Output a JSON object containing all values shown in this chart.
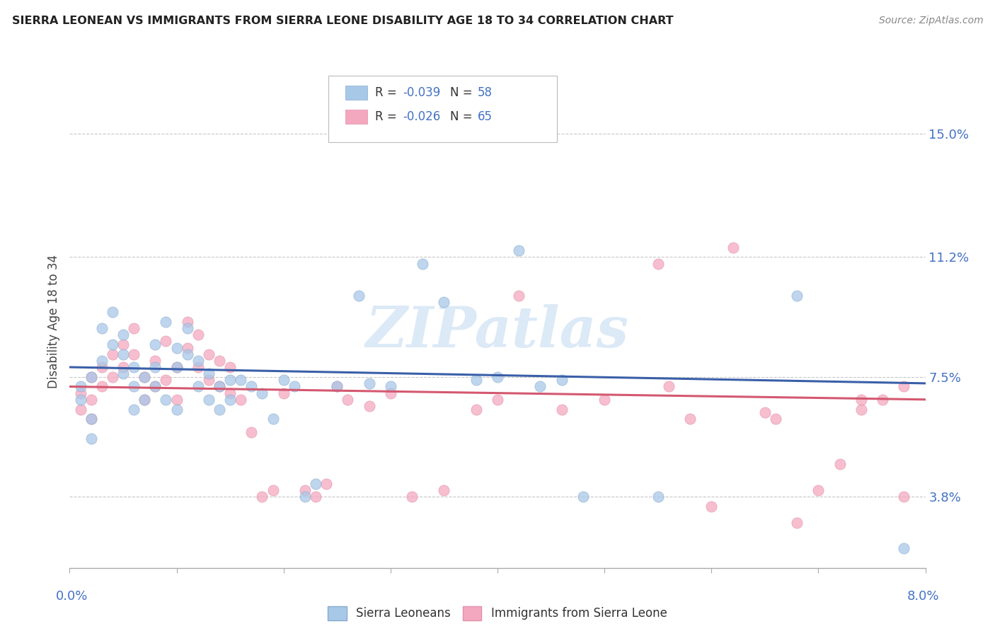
{
  "title": "SIERRA LEONEAN VS IMMIGRANTS FROM SIERRA LEONE DISABILITY AGE 18 TO 34 CORRELATION CHART",
  "source": "Source: ZipAtlas.com",
  "ylabel": "Disability Age 18 to 34",
  "ytick_labels": [
    "3.8%",
    "7.5%",
    "11.2%",
    "15.0%"
  ],
  "ytick_values": [
    0.038,
    0.075,
    0.112,
    0.15
  ],
  "xmin": 0.0,
  "xmax": 0.08,
  "ymin": 0.016,
  "ymax": 0.168,
  "legend1_r": "-0.039",
  "legend1_n": "58",
  "legend2_r": "-0.026",
  "legend2_n": "65",
  "color_blue": "#a8c8e8",
  "color_pink": "#f4a8c0",
  "line_blue": "#3a5fa8",
  "line_pink": "#d45870",
  "label1": "Sierra Leoneans",
  "label2": "Immigrants from Sierra Leone",
  "watermark": "ZIPatlas",
  "blue_line_start": 0.078,
  "blue_line_end": 0.073,
  "pink_line_start": 0.072,
  "pink_line_end": 0.068,
  "blue_points_x": [
    0.001,
    0.001,
    0.002,
    0.002,
    0.002,
    0.003,
    0.003,
    0.004,
    0.004,
    0.005,
    0.005,
    0.005,
    0.006,
    0.006,
    0.006,
    0.007,
    0.007,
    0.008,
    0.008,
    0.008,
    0.009,
    0.009,
    0.01,
    0.01,
    0.01,
    0.011,
    0.011,
    0.012,
    0.012,
    0.013,
    0.013,
    0.014,
    0.014,
    0.015,
    0.015,
    0.016,
    0.017,
    0.018,
    0.019,
    0.02,
    0.021,
    0.022,
    0.023,
    0.025,
    0.027,
    0.028,
    0.03,
    0.033,
    0.035,
    0.038,
    0.04,
    0.042,
    0.044,
    0.046,
    0.048,
    0.055,
    0.068,
    0.078
  ],
  "blue_points_y": [
    0.072,
    0.068,
    0.075,
    0.062,
    0.056,
    0.08,
    0.09,
    0.095,
    0.085,
    0.088,
    0.082,
    0.076,
    0.078,
    0.072,
    0.065,
    0.075,
    0.068,
    0.085,
    0.078,
    0.072,
    0.092,
    0.068,
    0.084,
    0.078,
    0.065,
    0.09,
    0.082,
    0.08,
    0.072,
    0.076,
    0.068,
    0.072,
    0.065,
    0.074,
    0.068,
    0.074,
    0.072,
    0.07,
    0.062,
    0.074,
    0.072,
    0.038,
    0.042,
    0.072,
    0.1,
    0.073,
    0.072,
    0.11,
    0.098,
    0.074,
    0.075,
    0.114,
    0.072,
    0.074,
    0.038,
    0.038,
    0.1,
    0.022
  ],
  "pink_points_x": [
    0.001,
    0.001,
    0.002,
    0.002,
    0.002,
    0.003,
    0.003,
    0.004,
    0.004,
    0.005,
    0.005,
    0.006,
    0.006,
    0.007,
    0.007,
    0.008,
    0.008,
    0.009,
    0.009,
    0.01,
    0.01,
    0.011,
    0.011,
    0.012,
    0.012,
    0.013,
    0.013,
    0.014,
    0.014,
    0.015,
    0.015,
    0.016,
    0.017,
    0.018,
    0.019,
    0.02,
    0.022,
    0.023,
    0.024,
    0.025,
    0.026,
    0.028,
    0.03,
    0.032,
    0.035,
    0.038,
    0.04,
    0.042,
    0.046,
    0.05,
    0.055,
    0.058,
    0.06,
    0.062,
    0.065,
    0.068,
    0.07,
    0.072,
    0.074,
    0.076,
    0.078,
    0.078,
    0.074,
    0.066,
    0.056
  ],
  "pink_points_y": [
    0.07,
    0.065,
    0.075,
    0.068,
    0.062,
    0.078,
    0.072,
    0.082,
    0.075,
    0.085,
    0.078,
    0.09,
    0.082,
    0.075,
    0.068,
    0.08,
    0.072,
    0.086,
    0.074,
    0.078,
    0.068,
    0.092,
    0.084,
    0.088,
    0.078,
    0.082,
    0.074,
    0.08,
    0.072,
    0.078,
    0.07,
    0.068,
    0.058,
    0.038,
    0.04,
    0.07,
    0.04,
    0.038,
    0.042,
    0.072,
    0.068,
    0.066,
    0.07,
    0.038,
    0.04,
    0.065,
    0.068,
    0.1,
    0.065,
    0.068,
    0.11,
    0.062,
    0.035,
    0.115,
    0.064,
    0.03,
    0.04,
    0.048,
    0.065,
    0.068,
    0.038,
    0.072,
    0.068,
    0.062,
    0.072
  ]
}
